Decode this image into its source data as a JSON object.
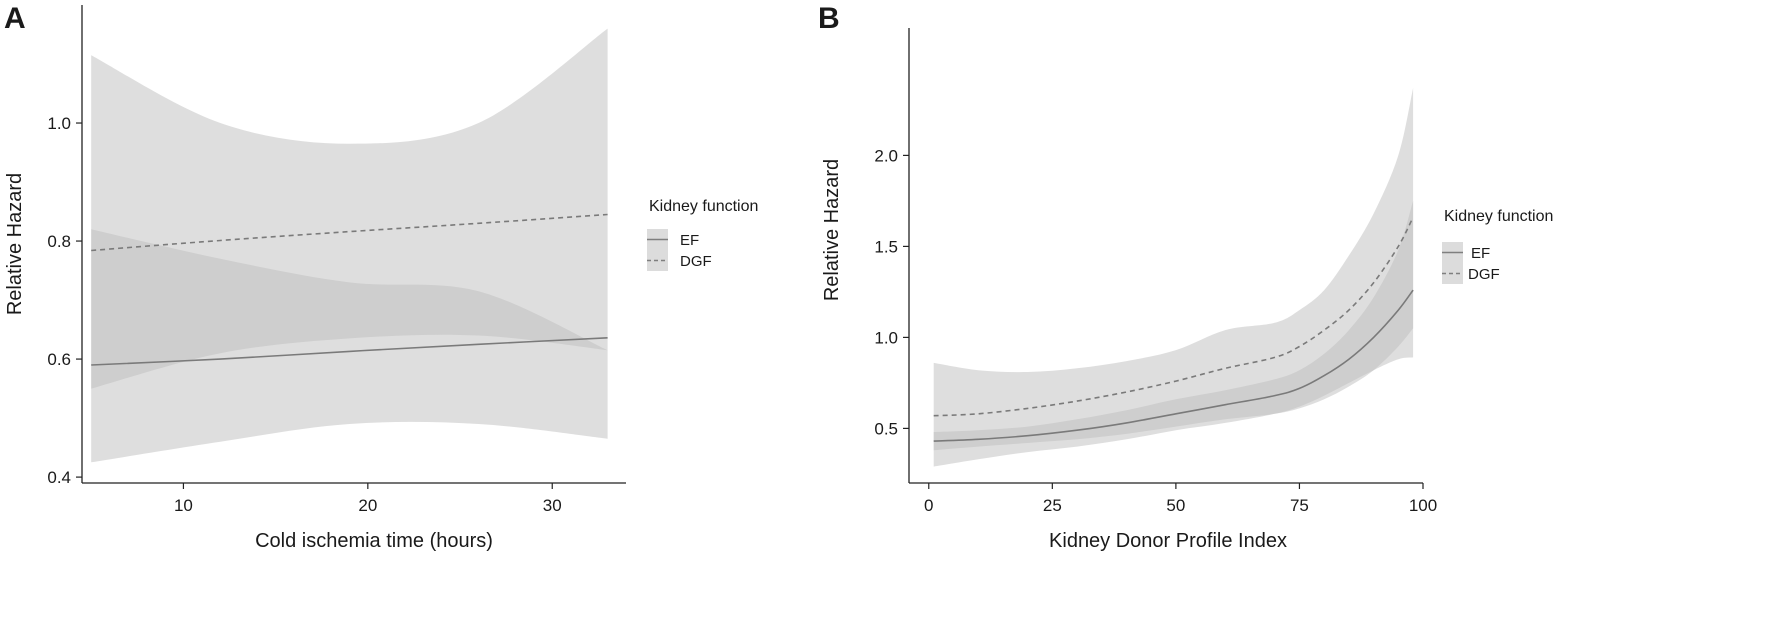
{
  "chart_data": [
    {
      "panel_label": "A",
      "type": "line",
      "xlabel": "Cold ischemia time (hours)",
      "ylabel": "Relative Hazard",
      "xlim": [
        4.5,
        34
      ],
      "ylim": [
        0.39,
        1.2
      ],
      "xticks": [
        10,
        20,
        30
      ],
      "yticks": [
        0.4,
        0.6,
        0.8,
        1.0
      ],
      "ytick_labels": [
        "0.4",
        "0.6",
        "0.8",
        "1.0"
      ],
      "legend": {
        "title": "Kidney function",
        "entries": [
          "EF",
          "DGF"
        ],
        "position": "right"
      },
      "series": [
        {
          "name": "EF",
          "style": "solid",
          "x": [
            5,
            12,
            19,
            26,
            33
          ],
          "y": [
            0.59,
            0.6,
            0.613,
            0.625,
            0.636
          ],
          "lower": [
            0.425,
            0.46,
            0.49,
            0.49,
            0.465
          ],
          "upper": [
            0.82,
            0.77,
            0.73,
            0.715,
            0.615
          ]
        },
        {
          "name": "DGF",
          "style": "dashed",
          "x": [
            5,
            12,
            19,
            26,
            33
          ],
          "y": [
            0.784,
            0.801,
            0.816,
            0.83,
            0.845
          ],
          "lower": [
            0.55,
            0.61,
            0.635,
            0.64,
            0.615
          ],
          "upper": [
            1.115,
            1.0,
            0.965,
            1.0,
            1.16
          ]
        }
      ]
    },
    {
      "panel_label": "B",
      "type": "line",
      "xlabel": "Kidney Donor Profile Index",
      "ylabel": "Relative Hazard",
      "xlim": [
        -4,
        100
      ],
      "ylim": [
        0.2,
        2.7
      ],
      "xticks": [
        0,
        25,
        50,
        75,
        100
      ],
      "yticks": [
        0.5,
        1.0,
        1.5,
        2.0
      ],
      "ytick_labels": [
        "0.5",
        "1.0",
        "1.5",
        "2.0"
      ],
      "legend": {
        "title": "Kidney function",
        "entries": [
          "EF",
          "DGF"
        ],
        "position": "right"
      },
      "series": [
        {
          "name": "EF",
          "style": "solid",
          "x": [
            1,
            10,
            20,
            30,
            40,
            50,
            60,
            70,
            75,
            80,
            85,
            90,
            95,
            98
          ],
          "y": [
            0.43,
            0.44,
            0.46,
            0.49,
            0.53,
            0.58,
            0.63,
            0.68,
            0.72,
            0.79,
            0.88,
            1.0,
            1.15,
            1.26
          ],
          "lower": [
            0.38,
            0.4,
            0.42,
            0.44,
            0.47,
            0.51,
            0.55,
            0.58,
            0.61,
            0.66,
            0.73,
            0.82,
            0.95,
            1.05
          ],
          "upper": [
            0.48,
            0.49,
            0.51,
            0.55,
            0.6,
            0.66,
            0.71,
            0.77,
            0.82,
            0.91,
            1.04,
            1.22,
            1.48,
            1.75
          ]
        },
        {
          "name": "DGF",
          "style": "dashed",
          "x": [
            1,
            10,
            20,
            30,
            40,
            50,
            60,
            70,
            75,
            80,
            85,
            90,
            95,
            98
          ],
          "y": [
            0.57,
            0.58,
            0.61,
            0.65,
            0.7,
            0.76,
            0.83,
            0.89,
            0.95,
            1.04,
            1.15,
            1.3,
            1.5,
            1.66
          ],
          "lower": [
            0.29,
            0.33,
            0.37,
            0.4,
            0.44,
            0.49,
            0.53,
            0.58,
            0.62,
            0.68,
            0.75,
            0.82,
            0.88,
            0.89
          ],
          "upper": [
            0.86,
            0.82,
            0.81,
            0.83,
            0.87,
            0.93,
            1.04,
            1.08,
            1.15,
            1.26,
            1.45,
            1.68,
            2.0,
            2.37
          ]
        }
      ]
    }
  ]
}
